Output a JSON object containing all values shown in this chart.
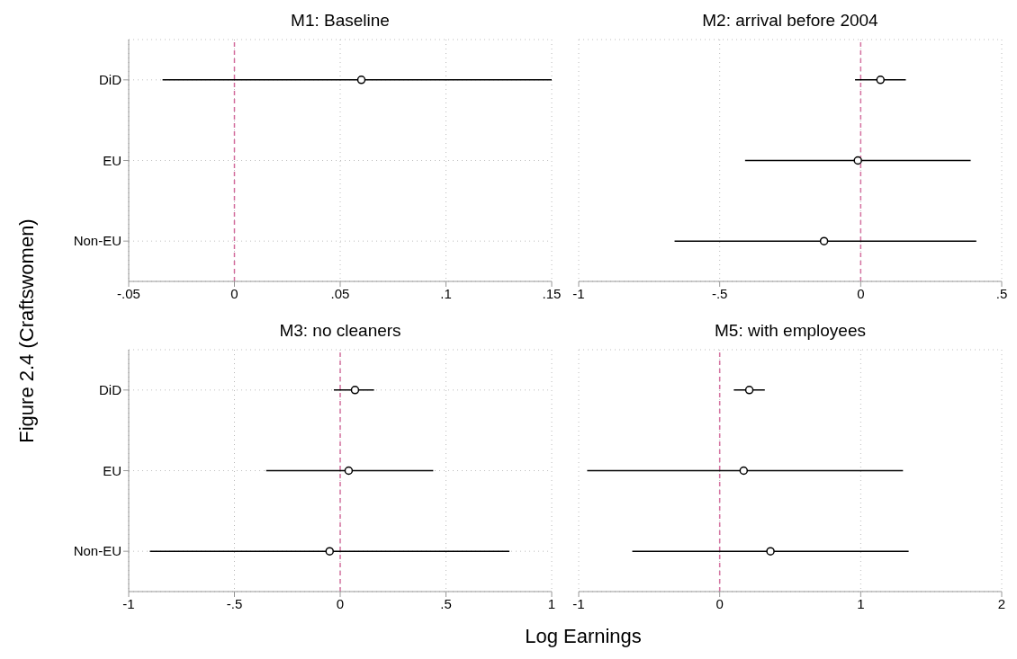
{
  "chart_data": [
    {
      "type": "scatter",
      "title": "M1: Baseline",
      "ylabel": "Figure 2.4 (Craftswomen)",
      "orientation": "horizontal",
      "categories": [
        "DiD",
        "EU",
        "Non-EU"
      ],
      "values": [
        0.06,
        null,
        null
      ],
      "errors": [
        [
          -0.034,
          0.15
        ],
        null,
        null
      ],
      "color": "#000000",
      "marker": "circle",
      "grid": true,
      "xlim": [
        -0.05,
        0.15
      ],
      "xticks": [
        {
          "value": -0.05,
          "label": "-.05"
        },
        0,
        {
          "value": 0.05,
          "label": ".05"
        },
        {
          "value": 0.1,
          "label": ".1"
        },
        {
          "value": 0.15,
          "label": ".15"
        }
      ],
      "ref_lines": [
        {
          "axis": "x",
          "value": 0,
          "color": "#d4709f",
          "line_style": "dashed"
        }
      ]
    },
    {
      "type": "scatter",
      "title": "M2: arrival before 2004",
      "orientation": "horizontal",
      "tick_labels": "x",
      "categories": [
        null,
        null,
        null
      ],
      "values": [
        0.07,
        -0.01,
        -0.13
      ],
      "errors": [
        [
          -0.02,
          0.16
        ],
        [
          -0.41,
          0.39
        ],
        [
          -0.66,
          0.41
        ]
      ],
      "color": "#000000",
      "marker": "circle",
      "grid": true,
      "xlim": [
        -1,
        0.5
      ],
      "xticks": [
        -1,
        {
          "value": -0.5,
          "label": "-.5"
        },
        0,
        {
          "value": 0.5,
          "label": ".5"
        }
      ],
      "ref_lines": [
        {
          "axis": "x",
          "value": 0,
          "color": "#d4709f",
          "line_style": "dashed"
        }
      ]
    },
    {
      "type": "scatter",
      "title": "M3: no cleaners",
      "xlabel": "Log Earnings",
      "orientation": "horizontal",
      "categories": [
        "DiD",
        "EU",
        "Non-EU"
      ],
      "values": [
        0.07,
        0.04,
        -0.05
      ],
      "errors": [
        [
          -0.03,
          0.16
        ],
        [
          -0.35,
          0.44
        ],
        [
          -0.9,
          0.8
        ]
      ],
      "color": "#000000",
      "marker": "circle",
      "grid": true,
      "xlim": [
        -1,
        1
      ],
      "xticks": [
        -1,
        {
          "value": -0.5,
          "label": "-.5"
        },
        0,
        {
          "value": 0.5,
          "label": ".5"
        },
        1
      ],
      "ref_lines": [
        {
          "axis": "x",
          "value": 0,
          "color": "#d4709f",
          "line_style": "dashed"
        }
      ]
    },
    {
      "type": "scatter",
      "title": "M5: with employees",
      "orientation": "horizontal",
      "tick_labels": "x",
      "categories": [
        null,
        null,
        null
      ],
      "values": [
        0.21,
        0.17,
        0.36
      ],
      "errors": [
        [
          0.1,
          0.32
        ],
        [
          -0.94,
          1.3
        ],
        [
          -0.62,
          1.34
        ]
      ],
      "color": "#000000",
      "marker": "circle",
      "grid": true,
      "xlim": [
        -1,
        2
      ],
      "xticks": [
        -1,
        0,
        1,
        2
      ],
      "ref_lines": [
        {
          "axis": "x",
          "value": 0,
          "color": "#d4709f",
          "line_style": "dashed"
        }
      ]
    }
  ]
}
